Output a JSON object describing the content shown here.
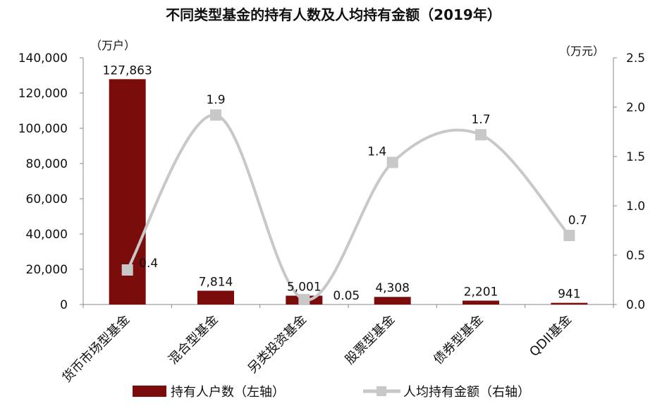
{
  "chart_data": {
    "type": "bar+line",
    "title": "不同类型基金的持有人数及人均持有金额（2019年）",
    "left_axis_unit": "（万户）",
    "right_axis_unit": "（万元）",
    "left_ylim": [
      0,
      140000
    ],
    "left_ticks": [
      "0",
      "20,000",
      "40,000",
      "60,000",
      "80,000",
      "100,000",
      "120,000",
      "140,000"
    ],
    "right_ylim": [
      0,
      2.5
    ],
    "right_ticks": [
      "0.0",
      "0.5",
      "1.0",
      "1.5",
      "2.0",
      "2.5"
    ],
    "categories": [
      "货币市场型基金",
      "混合型基金",
      "另类投资基金",
      "股票型基金",
      "债券型基金",
      "QDII基金"
    ],
    "grid": false,
    "legend_position": "bottom",
    "series": [
      {
        "name": "持有人户数（左轴）",
        "type": "bar",
        "axis": "left",
        "color": "#7b0c0c",
        "values": [
          127863,
          7814,
          5001,
          4308,
          2201,
          941
        ],
        "labels": [
          "127,863",
          "7,814",
          "5,001",
          "4,308",
          "2,201",
          "941"
        ]
      },
      {
        "name": "人均持有金额（右轴）",
        "type": "line",
        "axis": "right",
        "color": "#c8c8c8",
        "values": [
          0.35,
          1.92,
          0.05,
          1.44,
          1.72,
          0.7
        ],
        "labels": [
          "0.4",
          "1.9",
          "0.05",
          "1.4",
          "1.7",
          "0.7"
        ]
      }
    ]
  }
}
